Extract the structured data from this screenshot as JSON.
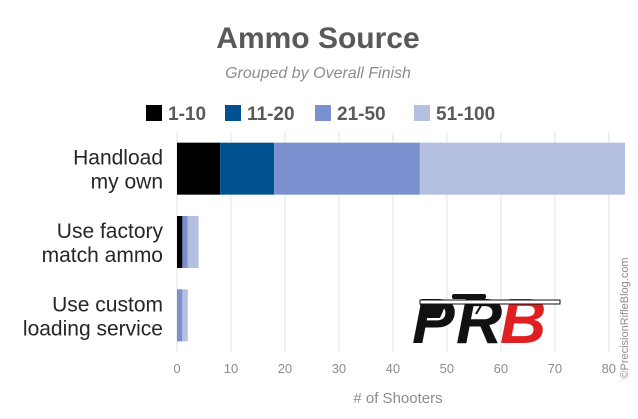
{
  "chart_data": {
    "type": "bar",
    "orientation": "horizontal",
    "stacked": true,
    "title": "Ammo Source",
    "subtitle": "Grouped by Overall Finish",
    "xlabel": "# of Shooters",
    "ylabel": "",
    "xlim": [
      0,
      83
    ],
    "x_ticks": [
      0,
      10,
      20,
      30,
      40,
      50,
      60,
      70,
      80
    ],
    "grid": true,
    "legend_placement": "top",
    "categories": [
      "Handload\nmy own",
      "Use factory\nmatch ammo",
      "Use custom\nloading service"
    ],
    "series": [
      {
        "name": "1-10",
        "color": "#000000",
        "values": [
          8,
          1,
          0
        ]
      },
      {
        "name": "11-20",
        "color": "#00518f",
        "values": [
          10,
          0,
          0
        ]
      },
      {
        "name": "21-50",
        "color": "#7b90ce",
        "values": [
          27,
          1,
          1
        ]
      },
      {
        "name": "51-100",
        "color": "#b5c0e1",
        "values": [
          38,
          2,
          1
        ]
      }
    ],
    "credit": "©PrecisionRifleBlog.com"
  },
  "logo": {
    "text": "PRB",
    "description": "PRB logo with rifle silhouette"
  }
}
